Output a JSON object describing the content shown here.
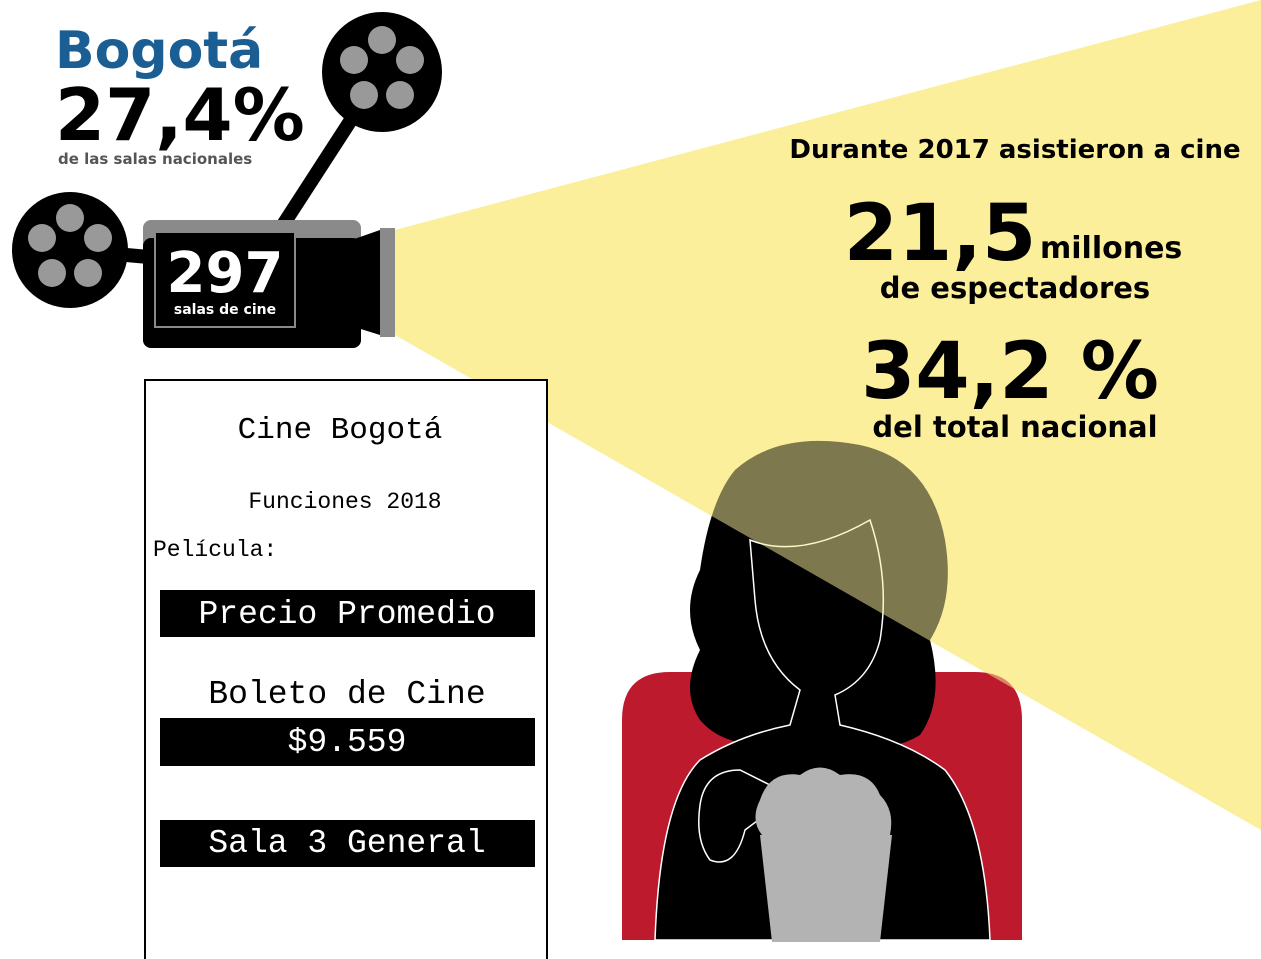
{
  "header": {
    "city": "Bogotá",
    "share": "27,4%",
    "share_note": "de las salas nacionales"
  },
  "projector": {
    "screens": "297",
    "screens_label": "salas de cine"
  },
  "attendance": {
    "intro": "Durante 2017 asistieron a cine",
    "viewers": "21,5",
    "viewers_unit": "millones",
    "viewers_label": "de espectadores",
    "national_share": "34,2 %",
    "national_share_label": "del total nacional"
  },
  "ticket": {
    "title": "Cine Bogotá",
    "subtitle": "Funciones 2018",
    "movie_label": "Película:",
    "price_heading": "Precio Promedio",
    "price_label": "Boleto de Cine",
    "price": "$9.559",
    "room": "Sala 3 General"
  }
}
